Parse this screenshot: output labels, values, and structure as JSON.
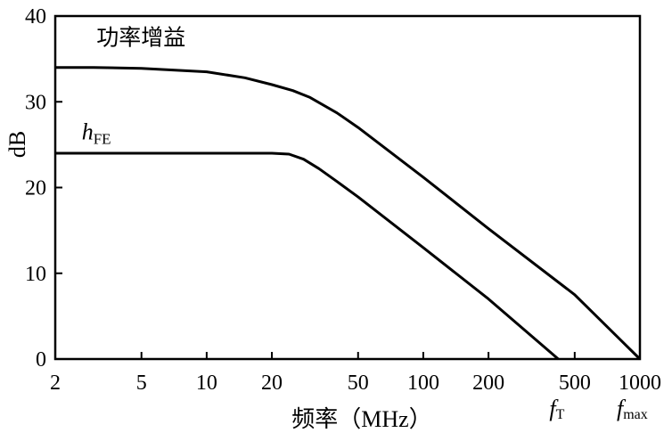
{
  "chart_data": {
    "type": "line",
    "title": "",
    "xlabel": "频率（MHz）",
    "ylabel": "dB",
    "x_scale": "log",
    "xlim": [
      2,
      1000
    ],
    "ylim": [
      0,
      40
    ],
    "grid": false,
    "x_ticks": [
      {
        "value": 2,
        "label": "2"
      },
      {
        "value": 5,
        "label": "5"
      },
      {
        "value": 10,
        "label": "10"
      },
      {
        "value": 20,
        "label": "20"
      },
      {
        "value": 50,
        "label": "50"
      },
      {
        "value": 100,
        "label": "100"
      },
      {
        "value": 200,
        "label": "200"
      },
      {
        "value": 500,
        "label": "500"
      },
      {
        "value": 1000,
        "label": "1000"
      }
    ],
    "y_ticks": [
      {
        "value": 0,
        "label": "0"
      },
      {
        "value": 10,
        "label": "10"
      },
      {
        "value": 20,
        "label": "20"
      },
      {
        "value": 30,
        "label": "30"
      },
      {
        "value": 40,
        "label": "40"
      }
    ],
    "series": [
      {
        "name": "功率增益",
        "label_pos": {
          "x": 3.1,
          "y": 36.6
        },
        "points": [
          [
            2,
            34.0
          ],
          [
            3,
            34.0
          ],
          [
            5,
            33.9
          ],
          [
            10,
            33.5
          ],
          [
            15,
            32.8
          ],
          [
            20,
            32.0
          ],
          [
            25,
            31.3
          ],
          [
            30,
            30.5
          ],
          [
            40,
            28.7
          ],
          [
            50,
            27.0
          ],
          [
            100,
            21.2
          ],
          [
            200,
            15.2
          ],
          [
            500,
            7.5
          ],
          [
            1000,
            0
          ]
        ]
      },
      {
        "name_main": "h",
        "name_sub": "FE",
        "label_pos": {
          "x": 2.65,
          "y": 25.6
        },
        "points": [
          [
            2,
            24.0
          ],
          [
            10,
            24.0
          ],
          [
            20,
            24.0
          ],
          [
            24,
            23.9
          ],
          [
            28,
            23.3
          ],
          [
            33,
            22.2
          ],
          [
            40,
            20.7
          ],
          [
            50,
            18.9
          ],
          [
            100,
            13.0
          ],
          [
            200,
            7.0
          ],
          [
            420,
            0
          ]
        ]
      }
    ],
    "annotations": [
      {
        "main": "f",
        "sub": "T",
        "x": 420
      },
      {
        "main": "f",
        "sub": "max",
        "x": 1000
      }
    ]
  }
}
